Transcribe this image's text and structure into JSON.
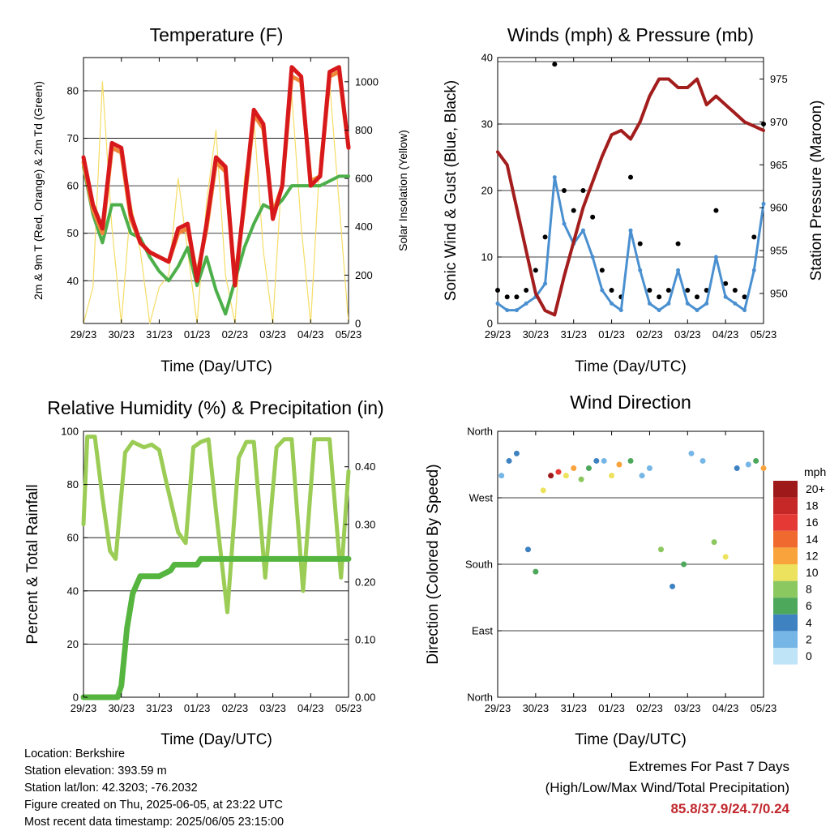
{
  "x_ticks": [
    "29/23",
    "30/23",
    "31/23",
    "01/23",
    "02/23",
    "03/23",
    "04/23",
    "05/23"
  ],
  "chart_data": [
    {
      "type": "line",
      "title": "Temperature (F)",
      "xlabel": "Time (Day/UTC)",
      "ylabel": "2m & 9m T (Red, Orange) & 2m Td (Green)",
      "ylabel_right": "Solar Insolation (Yellow)",
      "ylim": [
        31,
        87
      ],
      "yticks": [
        40,
        50,
        60,
        70,
        80
      ],
      "ylim_right": [
        0,
        1100
      ],
      "yticks_right": [
        0,
        200,
        400,
        600,
        800,
        1000
      ],
      "xlim": [
        0,
        7
      ],
      "x_day_index": [
        0,
        0.25,
        0.5,
        0.75,
        1,
        1.25,
        1.5,
        1.75,
        2,
        2.25,
        2.5,
        2.75,
        3,
        3.25,
        3.5,
        3.75,
        4,
        4.25,
        4.5,
        4.75,
        5,
        5.25,
        5.5,
        5.75,
        6,
        6.25,
        6.5,
        6.75,
        7
      ],
      "series": [
        {
          "name": "2m T",
          "color": "#d7191c",
          "values": [
            66,
            56,
            51,
            69,
            68,
            54,
            48,
            46,
            45,
            44,
            51,
            52,
            40,
            52,
            66,
            64,
            39,
            57,
            76,
            73,
            53,
            60,
            85,
            83,
            60,
            62,
            84,
            85,
            68
          ]
        },
        {
          "name": "9m T",
          "color": "#f0883a",
          "values": [
            65,
            55,
            50,
            68,
            67,
            53,
            48,
            46,
            45,
            44,
            50,
            51,
            41,
            51,
            65,
            63,
            40,
            56,
            75,
            72,
            54,
            60,
            83,
            82,
            61,
            62,
            83,
            84,
            68
          ]
        },
        {
          "name": "2m Td",
          "color": "#4daf4a",
          "values": [
            64,
            54,
            48,
            56,
            56,
            50,
            49,
            45,
            42,
            40,
            43,
            47,
            39,
            45,
            38,
            33,
            40,
            47,
            52,
            56,
            55,
            57,
            60,
            60,
            60,
            60,
            61,
            62,
            62
          ]
        },
        {
          "name": "Solar Insolation",
          "color": "#f5dd66",
          "axis": "right",
          "values": [
            0,
            150,
            1000,
            400,
            0,
            500,
            300,
            0,
            150,
            200,
            600,
            300,
            0,
            500,
            800,
            200,
            0,
            600,
            850,
            300,
            0,
            650,
            950,
            400,
            0,
            700,
            1000,
            500,
            0
          ]
        }
      ]
    },
    {
      "type": "scatter",
      "title": "Winds (mph) & Pressure (mb)",
      "xlabel": "Time (Day/UTC)",
      "ylabel": "Sonic Wind & Gust (Blue, Black)",
      "ylabel_right": "Station Pressure (Maroon)",
      "ylim": [
        0,
        40
      ],
      "yticks": [
        0,
        10,
        20,
        30,
        40
      ],
      "ylim_right": [
        946.5,
        977.5
      ],
      "yticks_right": [
        950,
        955,
        960,
        965,
        970,
        975
      ],
      "xlim": [
        0,
        7
      ],
      "series": [
        {
          "name": "Sonic Wind",
          "color": "#4a90d0",
          "x": [
            0,
            0.25,
            0.5,
            0.75,
            1,
            1.25,
            1.5,
            1.75,
            2,
            2.25,
            2.5,
            2.75,
            3,
            3.25,
            3.5,
            3.75,
            4,
            4.25,
            4.5,
            4.75,
            5,
            5.25,
            5.5,
            5.75,
            6,
            6.25,
            6.5,
            6.75,
            7
          ],
          "values": [
            3,
            2,
            2,
            3,
            4,
            6,
            22,
            15,
            12,
            14,
            10,
            5,
            3,
            2,
            14,
            8,
            3,
            2,
            3,
            8,
            3,
            2,
            3,
            10,
            4,
            3,
            2,
            8,
            18
          ]
        },
        {
          "name": "Gust",
          "color": "#000000",
          "x": [
            0,
            0.25,
            0.5,
            0.75,
            1,
            1.25,
            1.5,
            1.75,
            2,
            2.25,
            2.5,
            2.75,
            3,
            3.25,
            3.5,
            3.75,
            4,
            4.25,
            4.5,
            4.75,
            5,
            5.25,
            5.5,
            5.75,
            6,
            6.25,
            6.5,
            6.75,
            7
          ],
          "values": [
            5,
            4,
            4,
            5,
            8,
            13,
            39,
            20,
            17,
            20,
            16,
            8,
            5,
            4,
            22,
            12,
            5,
            4,
            5,
            12,
            5,
            4,
            5,
            17,
            6,
            5,
            4,
            13,
            30
          ]
        },
        {
          "name": "Station Pressure",
          "color": "#a31d1d",
          "axis": "right",
          "x": [
            0,
            0.25,
            0.5,
            0.75,
            1,
            1.25,
            1.5,
            1.75,
            2,
            2.25,
            2.5,
            2.75,
            3,
            3.25,
            3.5,
            3.75,
            4,
            4.25,
            4.5,
            4.75,
            5,
            5.25,
            5.5,
            5.75,
            6,
            6.25,
            6.5,
            6.75,
            7
          ],
          "values": [
            966.5,
            965,
            960,
            955,
            950,
            948,
            947.5,
            952,
            956,
            960,
            963,
            966,
            968.5,
            969,
            968,
            970,
            973,
            975,
            975,
            974,
            974,
            975,
            972,
            973,
            972,
            971,
            970,
            969.5,
            969
          ]
        }
      ]
    },
    {
      "type": "line",
      "title": "Relative Humidity (%) & Precipitation (in)",
      "xlabel": "Time (Day/UTC)",
      "ylabel": "Percent & Total Rainfall",
      "ylim": [
        0,
        100
      ],
      "yticks": [
        0,
        20,
        40,
        60,
        80,
        100
      ],
      "ylim_right": [
        0,
        0.4615
      ],
      "yticks_right": [
        "0.00",
        "0.10",
        "0.20",
        "0.30",
        "0.40"
      ],
      "xlim": [
        0,
        7
      ],
      "series": [
        {
          "name": "Relative Humidity",
          "color": "#9bcc55",
          "x": [
            0,
            0.1,
            0.3,
            0.5,
            0.7,
            0.85,
            1.1,
            1.3,
            1.6,
            1.8,
            2.0,
            2.2,
            2.5,
            2.7,
            2.9,
            3.1,
            3.3,
            3.5,
            3.8,
            4.1,
            4.3,
            4.5,
            4.8,
            5.1,
            5.3,
            5.5,
            5.8,
            6.1,
            6.3,
            6.5,
            6.8,
            7.0
          ],
          "values": [
            65,
            98,
            98,
            75,
            55,
            52,
            92,
            96,
            94,
            95,
            93,
            80,
            62,
            58,
            94,
            96,
            97,
            70,
            32,
            90,
            96,
            96,
            45,
            94,
            97,
            97,
            40,
            97,
            97,
            97,
            45,
            85
          ]
        },
        {
          "name": "Total Precipitation",
          "color": "#55b53e",
          "axis": "right",
          "x": [
            0,
            0.9,
            1.0,
            1.15,
            1.3,
            1.5,
            1.7,
            2.0,
            2.3,
            2.4,
            3.0,
            3.1,
            7.0
          ],
          "values": [
            0,
            0,
            0.02,
            0.12,
            0.18,
            0.21,
            0.21,
            0.21,
            0.22,
            0.23,
            0.23,
            0.24,
            0.24
          ]
        }
      ]
    },
    {
      "type": "scatter",
      "title": "Wind Direction",
      "xlabel": "Time (Day/UTC)",
      "ylabel": "Direction (Colored By Speed)",
      "yticks": [
        "North",
        "East",
        "South",
        "West",
        "North"
      ],
      "ylim": [
        0,
        360
      ],
      "xlim": [
        0,
        7
      ],
      "legend": {
        "title": "mph",
        "labels": [
          "20+",
          "18",
          "16",
          "14",
          "12",
          "10",
          "8",
          "6",
          "4",
          "2",
          "0"
        ],
        "colors": [
          "#9e1a1a",
          "#c62828",
          "#e53935",
          "#f06a30",
          "#f9a33c",
          "#ece25e",
          "#8cc860",
          "#4ea85c",
          "#3f82c2",
          "#76b6e6",
          "#bfe3f7"
        ]
      },
      "series": [
        {
          "name": "direction",
          "x": [
            0.1,
            0.3,
            0.5,
            0.8,
            1.0,
            1.2,
            1.4,
            1.6,
            1.8,
            2.0,
            2.2,
            2.4,
            2.6,
            2.8,
            3.0,
            3.2,
            3.5,
            3.8,
            4.0,
            4.3,
            4.6,
            4.9,
            5.1,
            5.4,
            5.7,
            6.0,
            6.3,
            6.6,
            6.8,
            7.0
          ],
          "values": [
            300,
            320,
            330,
            200,
            170,
            280,
            300,
            305,
            300,
            310,
            295,
            310,
            320,
            320,
            300,
            315,
            320,
            300,
            310,
            200,
            150,
            180,
            330,
            320,
            210,
            190,
            310,
            315,
            320,
            310
          ],
          "speeds": [
            3,
            4,
            4,
            5,
            6,
            10,
            20,
            16,
            10,
            12,
            8,
            6,
            4,
            3,
            10,
            12,
            6,
            3,
            3,
            8,
            4,
            6,
            3,
            3,
            8,
            10,
            4,
            3,
            6,
            12
          ]
        }
      ]
    }
  ],
  "info": {
    "location": "Location: Berkshire",
    "elevation": "Station elevation: 393.59 m",
    "latlon": "Station lat/lon: 42.3203; -76.2032",
    "created": "Figure created on Thu, 2025-06-05, at 23:22 UTC",
    "recent": "Most recent data timestamp: 2025/06/05 23:15:00"
  },
  "extremes": {
    "line1": "Extremes For Past 7 Days",
    "line2": "(High/Low/Max Wind/Total Precipitation)",
    "values": "85.8/37.9/24.7/0.24"
  }
}
